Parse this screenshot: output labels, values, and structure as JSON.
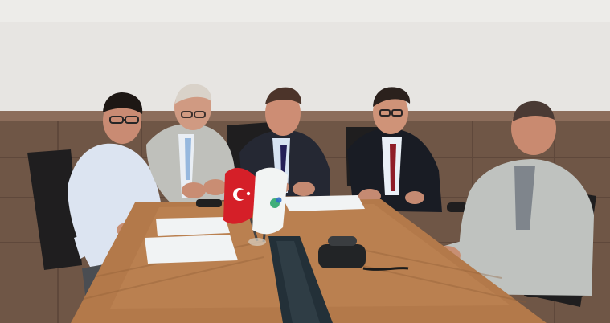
{
  "image": {
    "kind": "photograph",
    "colors": {
      "wall": "#e7e5e2",
      "wall_shadow": "#d6d2cd",
      "wood_panel": "#6f5646",
      "wood_panel_dark": "#5a4538",
      "table": "#b3794a",
      "table_light": "#c48a58",
      "table_dark": "#8f5d36",
      "chair": "#1f1e1f",
      "suit_gray": "#bfc0bb",
      "suit_dark": "#1a1d25",
      "shirt_white": "#e3e8ef",
      "skin": "#c88f73",
      "hair_dark": "#1d1714",
      "hair_gray": "#c7c1b8",
      "turkish_flag_red": "#d51f28",
      "logo_flag_white": "#f2f4f3",
      "paper": "#f1f3f4",
      "glass_slot": "#1f2a31",
      "phone": "#222426"
    }
  }
}
